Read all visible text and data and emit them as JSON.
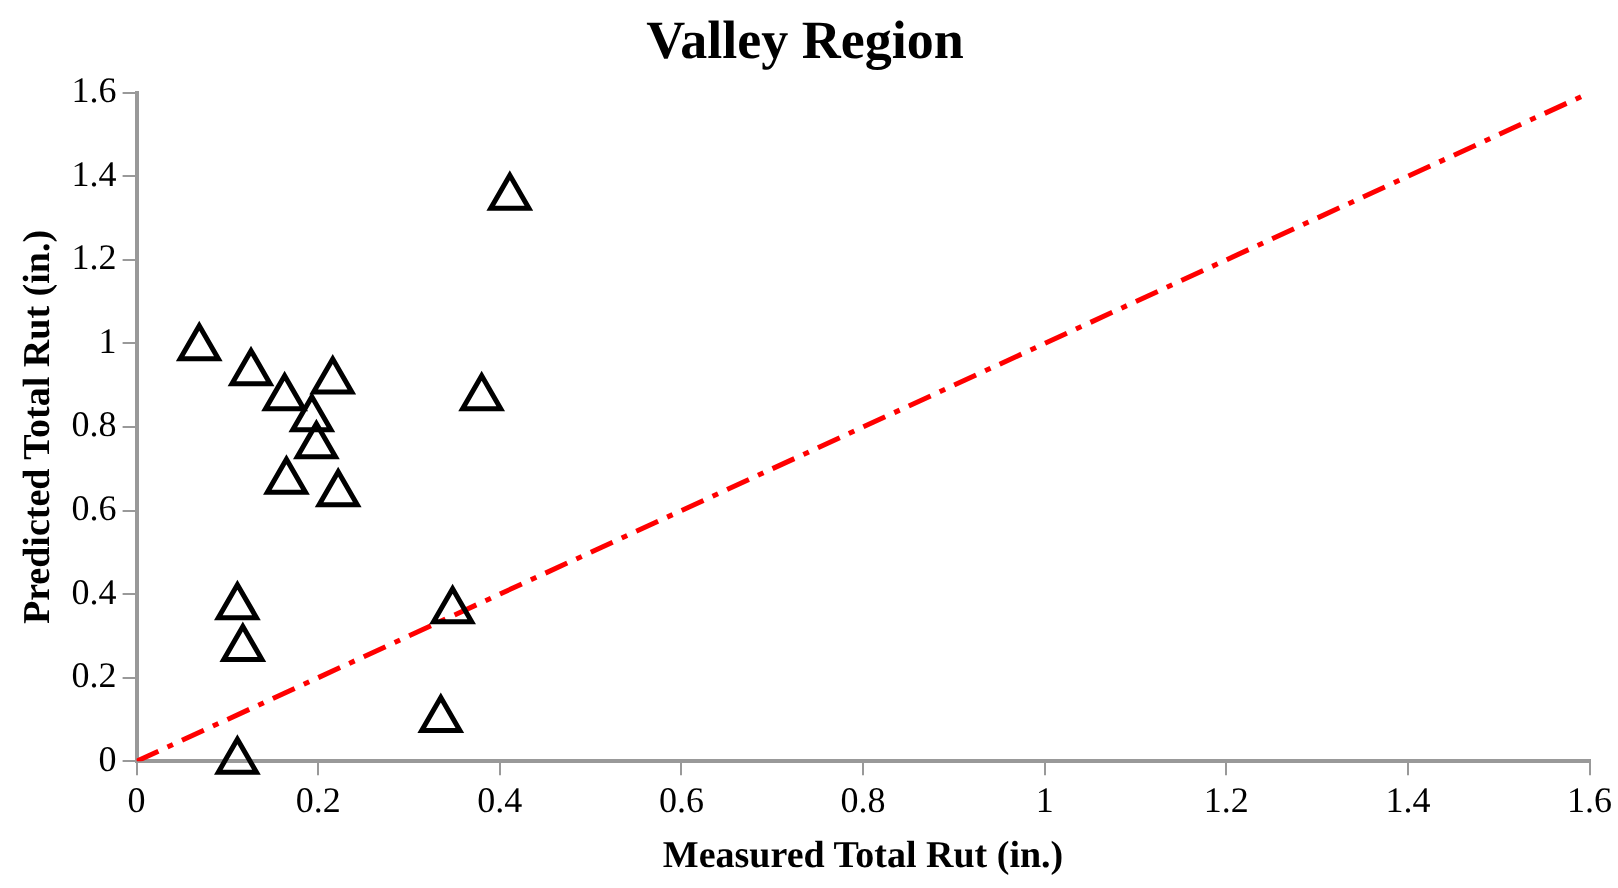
{
  "chart_data": {
    "type": "scatter",
    "title": "Valley Region",
    "xlabel": "Measured Total Rut (in.)",
    "ylabel": "Predicted Total Rut (in.)",
    "xlim": [
      0,
      1.6
    ],
    "ylim": [
      0,
      1.6
    ],
    "xticks": [
      0,
      0.2,
      0.4,
      0.6,
      0.8,
      1,
      1.2,
      1.4,
      1.6
    ],
    "yticks": [
      0,
      0.2,
      0.4,
      0.6,
      0.8,
      1,
      1.2,
      1.4,
      1.6
    ],
    "grid": false,
    "legend": false,
    "marker": "triangle",
    "series": [
      {
        "color": "#000000",
        "x": [
          0.069,
          0.126,
          0.163,
          0.216,
          0.193,
          0.198,
          0.165,
          0.222,
          0.111,
          0.117,
          0.111,
          0.411,
          0.38,
          0.348,
          0.335
        ],
        "values": [
          0.99,
          0.93,
          0.87,
          0.91,
          0.82,
          0.755,
          0.67,
          0.64,
          0.37,
          0.27,
          0,
          1.35,
          0.87,
          0.36,
          0.1
        ]
      },
      {
        "type": "line",
        "color": "#ff0000",
        "line_style": "dashed",
        "marker": "none",
        "x": [
          0,
          1.6
        ],
        "values": [
          0,
          1.6
        ]
      }
    ]
  }
}
